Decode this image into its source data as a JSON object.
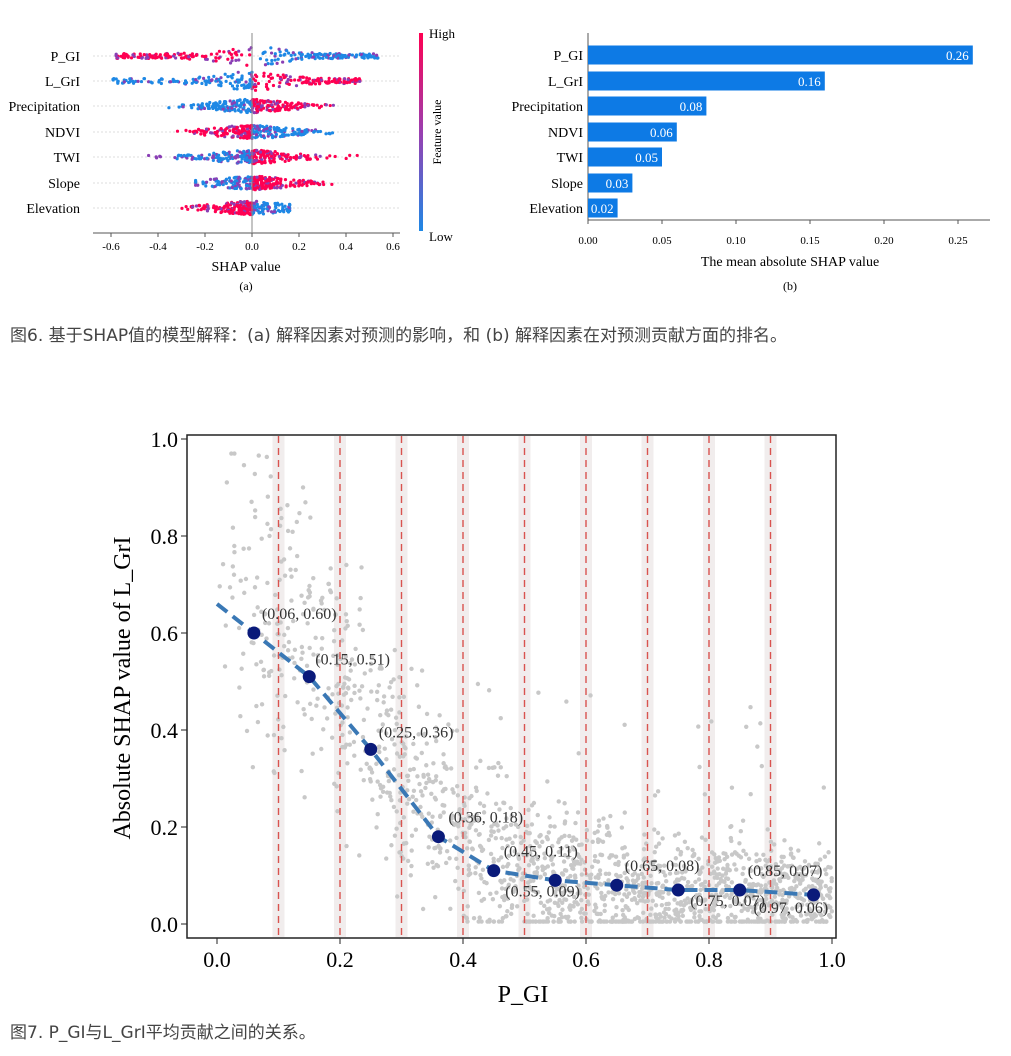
{
  "figure6": {
    "caption": "图6. 基于SHAP值的模型解释：(a) 解释因素对预测的影响，和 (b) 解释因素在对预测贡献方面的排名。",
    "beeswarm": {
      "features": [
        "P_GI",
        "L_GrI",
        "Precipitation",
        "NDVI",
        "TWI",
        "Slope",
        "Elevation"
      ],
      "x_label": "SHAP value",
      "x_ticks": [
        "-0.6",
        "-0.4",
        "-0.2",
        "0.0",
        "0.2",
        "0.4",
        "0.6"
      ],
      "colorbar_high": "High",
      "colorbar_low": "Low",
      "colorbar_label": "Feature value",
      "panel_label": "(a)",
      "color_high": "#ff0052",
      "color_low": "#1e88e5"
    },
    "importance": {
      "panel_label": "(b)",
      "x_label": "The mean absolute SHAP value",
      "x_ticks": [
        "0.00",
        "0.05",
        "0.10",
        "0.15",
        "0.20",
        "0.25"
      ],
      "bar_color": "#0d7ae5",
      "chart_data": {
        "type": "bar",
        "orientation": "horizontal",
        "categories": [
          "P_GI",
          "L_GrI",
          "Precipitation",
          "NDVI",
          "TWI",
          "Slope",
          "Elevation"
        ],
        "values": [
          0.26,
          0.16,
          0.08,
          0.06,
          0.05,
          0.03,
          0.02
        ],
        "value_labels": [
          "0.26",
          "0.16",
          "0.08",
          "0.06",
          "0.05",
          "0.03",
          "0.02"
        ],
        "xlabel": "The mean absolute SHAP value",
        "xlim": [
          0,
          0.27
        ]
      }
    }
  },
  "figure7": {
    "caption": "图7. P_GI与L_GrI平均贡献之间的关系。",
    "x_ticks": [
      "0.0",
      "0.2",
      "0.4",
      "0.6",
      "0.8",
      "1.0"
    ],
    "y_ticks": [
      "0.0",
      "0.2",
      "0.4",
      "0.6",
      "0.8",
      "1.0"
    ],
    "chart_data": {
      "type": "scatter",
      "xlabel": "P_GI",
      "ylabel": "Absolute SHAP value of L_GrI",
      "xlim": [
        0,
        1.0
      ],
      "ylim": [
        0,
        1.0
      ],
      "bin_boundaries": [
        0.1,
        0.2,
        0.3,
        0.4,
        0.5,
        0.6,
        0.7,
        0.8,
        0.9
      ],
      "series": [
        {
          "x": [
            0.06,
            0.15,
            0.25,
            0.36,
            0.45,
            0.55,
            0.65,
            0.75,
            0.85,
            0.97
          ],
          "y": [
            0.6,
            0.51,
            0.36,
            0.18,
            0.11,
            0.09,
            0.08,
            0.07,
            0.07,
            0.06
          ]
        }
      ],
      "point_labels": [
        "(0.06, 0.60)",
        "(0.15, 0.51)",
        "(0.25, 0.36)",
        "(0.36, 0.18)",
        "(0.45, 0.11)",
        "(0.55, 0.09)",
        "(0.65, 0.08)",
        "(0.75, 0.07)",
        "(0.85, 0.07)",
        "(0.97, 0.06)"
      ],
      "trend_line_color": "#3a78b5",
      "point_color": "#0a1a7a",
      "scatter_color": "#c8c8c8",
      "bin_line_color": "#d9534f"
    }
  }
}
